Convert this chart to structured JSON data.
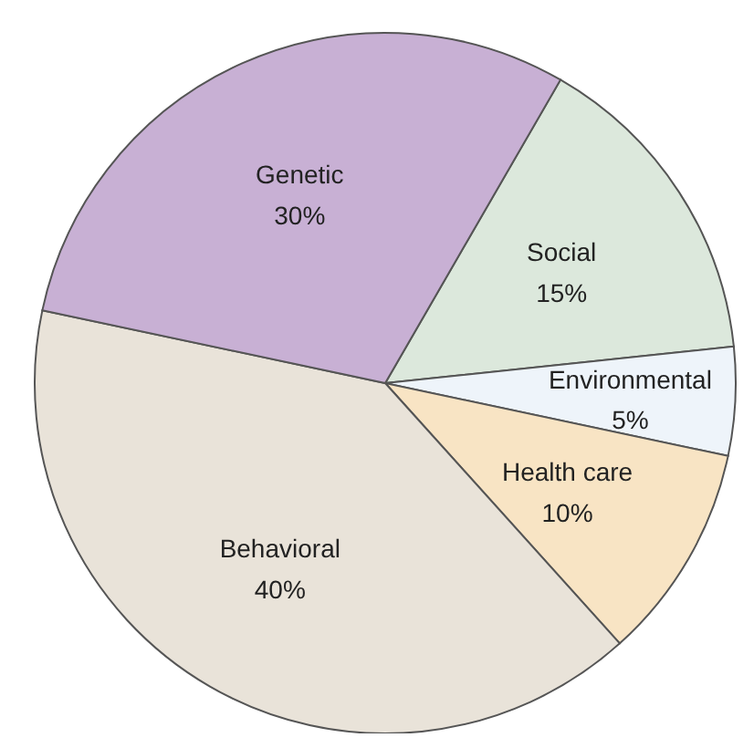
{
  "chart_data": {
    "type": "pie",
    "categories": [
      "Social",
      "Environmental",
      "Health care",
      "Behavioral",
      "Genetic"
    ],
    "values": [
      15,
      5,
      10,
      40,
      30
    ],
    "value_labels": [
      "15%",
      "5%",
      "10%",
      "40%",
      "30%"
    ],
    "colors": [
      "#dce8dc",
      "#eef4fa",
      "#f8e4c4",
      "#e9e3d9",
      "#c8b0d4"
    ]
  }
}
